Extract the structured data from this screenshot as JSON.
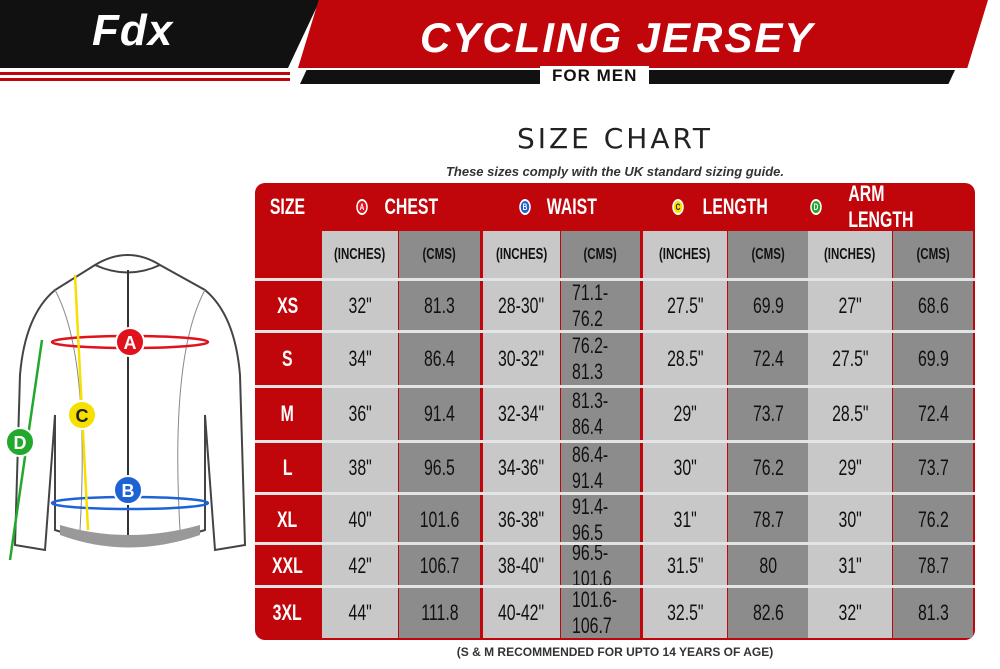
{
  "brand": {
    "logo": "Fdx"
  },
  "header": {
    "title": "CYCLING JERSEY",
    "subtitle": "FOR MEN"
  },
  "chart": {
    "title": "SIZE CHART",
    "note": "These sizes comply with the UK standard sizing guide.",
    "footnote": "(S & M RECOMMENDED FOR UPTO 14 YEARS OF AGE)"
  },
  "colors": {
    "red": "#c0050b",
    "light_cell": "#c8c8c8",
    "dark_cell": "#8c8c8c",
    "marker_a": "#e0121c",
    "marker_b": "#1e63d6",
    "marker_c": "#f5e000",
    "marker_d": "#22a82c"
  },
  "table": {
    "size_header": "SIZE",
    "groups": [
      {
        "marker": "A",
        "label": "CHEST",
        "color": "#e0121c"
      },
      {
        "marker": "B",
        "label": "WAIST",
        "color": "#1e63d6"
      },
      {
        "marker": "C",
        "label": "LENGTH",
        "color": "#f5e000"
      },
      {
        "marker": "D",
        "label": "ARM LENGTH",
        "color": "#22a82c"
      }
    ],
    "units": [
      "(INCHES)",
      "(CMS)"
    ],
    "rows": [
      {
        "size": "XS",
        "values": [
          "32\"",
          "81.3",
          "28-30\"",
          "71.1-76.2",
          "27.5\"",
          "69.9",
          "27\"",
          "68.6"
        ]
      },
      {
        "size": "S",
        "values": [
          "34\"",
          "86.4",
          "30-32\"",
          "76.2-81.3",
          "28.5\"",
          "72.4",
          "27.5\"",
          "69.9"
        ]
      },
      {
        "size": "M",
        "values": [
          "36\"",
          "91.4",
          "32-34\"",
          "81.3-86.4",
          "29\"",
          "73.7",
          "28.5\"",
          "72.4"
        ]
      },
      {
        "size": "L",
        "values": [
          "38\"",
          "96.5",
          "34-36\"",
          "86.4-91.4",
          "30\"",
          "76.2",
          "29\"",
          "73.7"
        ]
      },
      {
        "size": "XL",
        "values": [
          "40\"",
          "101.6",
          "36-38\"",
          "91.4-96.5",
          "31\"",
          "78.7",
          "30\"",
          "76.2"
        ]
      },
      {
        "size": "XXL",
        "values": [
          "42\"",
          "106.7",
          "38-40\"",
          "96.5-101.6",
          "31.5\"",
          "80",
          "31\"",
          "78.7"
        ]
      },
      {
        "size": "3XL",
        "values": [
          "44\"",
          "111.8",
          "40-42\"",
          "101.6-106.7",
          "32.5\"",
          "82.6",
          "32\"",
          "81.3"
        ]
      }
    ]
  },
  "diagram": {
    "markers": [
      "A",
      "B",
      "C",
      "D"
    ]
  }
}
